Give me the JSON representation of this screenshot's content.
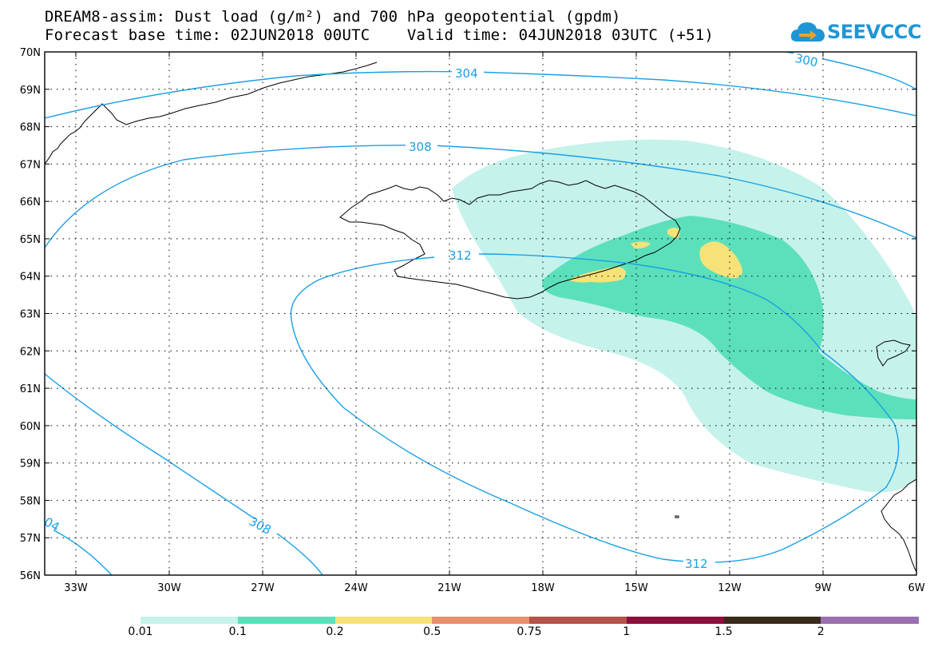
{
  "header": {
    "line1": "DREAM8-assim: Dust load (g/m²) and 700 hPa geopotential (gpdm)",
    "line2": "Forecast base time: 02JUN2018 00UTC    Valid time: 04JUN2018 03UTC (+51)"
  },
  "logo": {
    "text": "SEEVCCC",
    "icon": "cloud-arrow-icon",
    "color": "#1e96d6"
  },
  "map": {
    "lat_labels": [
      "70N",
      "69N",
      "68N",
      "67N",
      "66N",
      "65N",
      "64N",
      "63N",
      "62N",
      "61N",
      "60N",
      "59N",
      "58N",
      "57N",
      "56N"
    ],
    "lon_labels": [
      "33W",
      "30W",
      "27W",
      "24W",
      "21W",
      "18W",
      "15W",
      "12W",
      "9W",
      "6W"
    ],
    "contour_labels": [
      "304",
      "308",
      "312",
      "300",
      "308",
      "312",
      "04"
    ],
    "contour_color": "#1aa0e6",
    "dust_colors": {
      "low": "#c5f2ea",
      "mid": "#5be0bb",
      "high": "#f7e27a"
    }
  },
  "colorbar": {
    "labels": [
      "0.01",
      "0.1",
      "0.2",
      "0.5",
      "0.75",
      "1",
      "1.5",
      "2"
    ],
    "colors": [
      "#c5f2ea",
      "#5be0bb",
      "#f7e27a",
      "#e8906a",
      "#b5524a",
      "#8a0f3a",
      "#3b2a1a",
      "#9b70b0"
    ]
  }
}
